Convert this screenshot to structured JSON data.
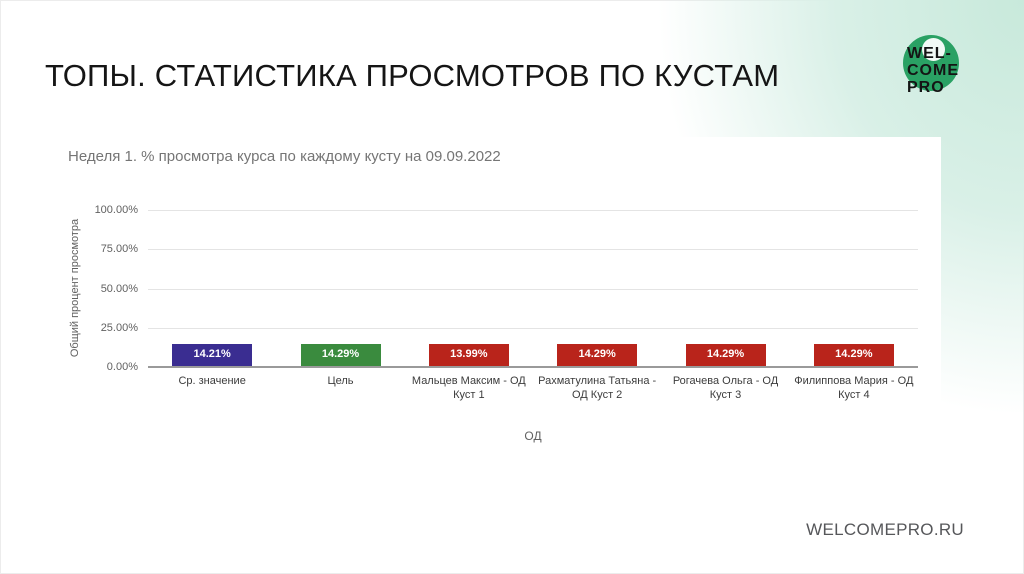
{
  "slide": {
    "title": "ТОПЫ. СТАТИСТИКА ПРОСМОТРОВ ПО КУСТАМ"
  },
  "logo": {
    "lines": [
      "WEL-",
      "COME",
      "PRO"
    ],
    "circle_color": "#2aa164"
  },
  "footer": {
    "url": "WELCOMEPRO.RU"
  },
  "colors": {
    "accent_mint": "#cbeade",
    "bar_average": "#3a2d91",
    "bar_goal": "#3a8b3e",
    "bar_person": "#b9241b",
    "gridline": "#e4e4e4",
    "baseline": "#9a9a9a",
    "chart_text": "#616161"
  },
  "chart_data": {
    "type": "bar",
    "title": "Неделя 1. % просмотра курса по каждому кусту на 09.09.2022",
    "xlabel": "ОД",
    "ylabel": "Общий процент просмотра",
    "categories": [
      "Ср. значение",
      "Цель",
      "Мальцев Максим - ОД Куст 1",
      "Рахматулина Татьяна - ОД Куст 2",
      "Рогачева Ольга - ОД Куст 3",
      "Филиппова Мария - ОД Куст 4"
    ],
    "values": [
      14.21,
      14.29,
      13.99,
      14.29,
      14.29,
      14.29
    ],
    "value_labels": [
      "14.21%",
      "14.29%",
      "13.99%",
      "14.29%",
      "14.29%",
      "14.29%"
    ],
    "bar_colors": [
      "#3a2d91",
      "#3a8b3e",
      "#b9241b",
      "#b9241b",
      "#b9241b",
      "#b9241b"
    ],
    "ylim": [
      0,
      100
    ],
    "yticks": [
      0,
      25,
      50,
      75,
      100
    ],
    "ytick_labels": [
      "0.00%",
      "25.00%",
      "50.00%",
      "75.00%",
      "100.00%"
    ],
    "grid": true,
    "legend": "none"
  }
}
